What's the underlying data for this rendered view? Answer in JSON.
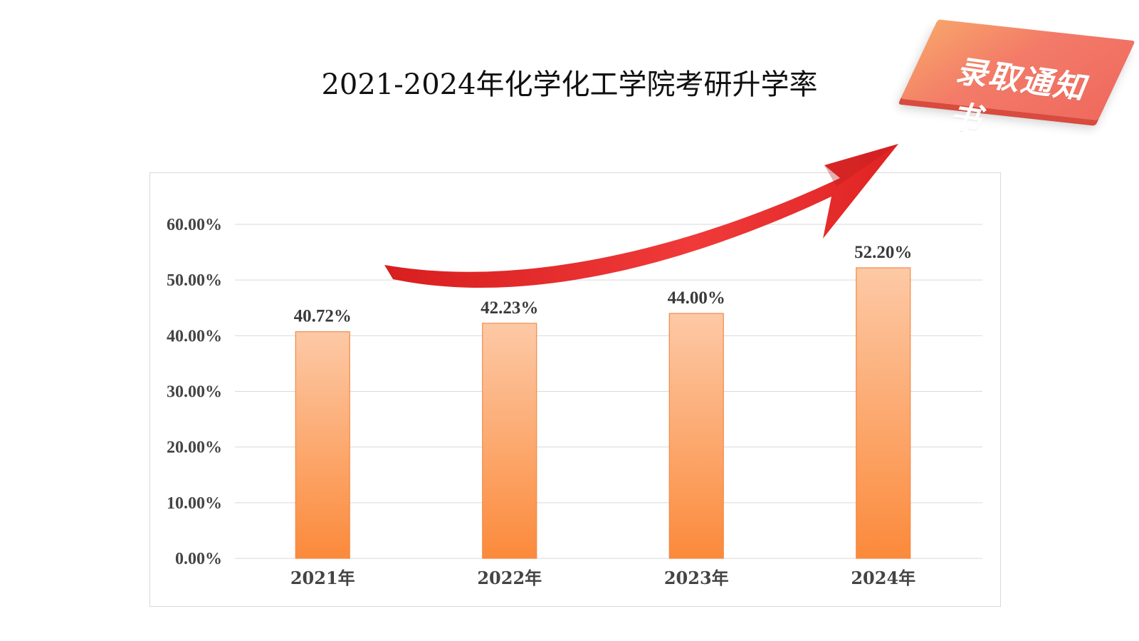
{
  "header": {
    "title": "2021-2024年化学化工学院考研升学率"
  },
  "badge": {
    "text": "录取通知书",
    "color": "#f37a68"
  },
  "arrow": {
    "color": "#ee2b2b"
  },
  "chart_data": {
    "type": "bar",
    "title": "2021-2024年化学化工学院考研升学率",
    "categories": [
      "2021年",
      "2022年",
      "2023年",
      "2024年"
    ],
    "values": [
      40.72,
      42.23,
      44.0,
      52.2
    ],
    "data_labels": [
      "40.72%",
      "42.23%",
      "44.00%",
      "52.20%"
    ],
    "y_ticks": [
      "0.00%",
      "10.00%",
      "20.00%",
      "30.00%",
      "40.00%",
      "50.00%",
      "60.00%"
    ],
    "ylim": [
      0,
      60
    ],
    "grid": true,
    "bar_gradient": [
      "#fdc9a6",
      "#fb8a3b"
    ],
    "bar_border": "#f08a4a",
    "gridline_color": "#d9d9d9"
  }
}
